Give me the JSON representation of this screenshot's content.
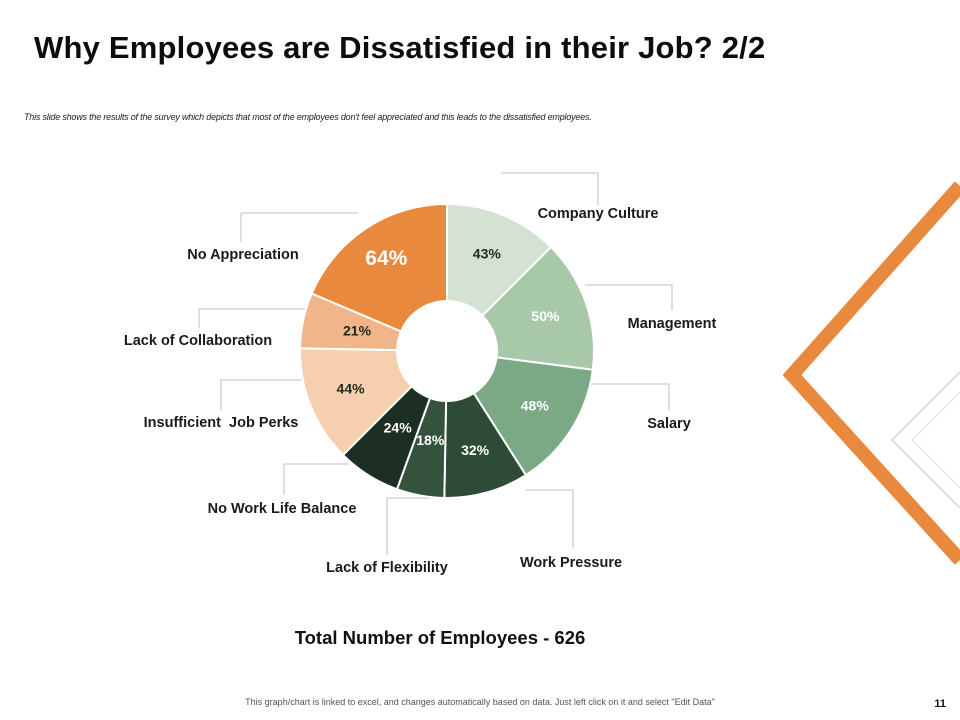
{
  "slide": {
    "title": "Why Employees are Dissatisfied in their Job? 2/2",
    "subtitle": "This slide shows the results of the survey which depicts that most of the employees don't feel appreciated and this leads to the dissatisfied employees.",
    "total_label": "Total Number of Employees  - 626",
    "footer_note": "This graph/chart is linked to excel, and changes automatically based on data. Just left click on it and select \"Edit Data\"",
    "page_number": "11"
  },
  "colors": {
    "accent": "#E8893E"
  },
  "chart_data": {
    "type": "pie",
    "variant": "donut",
    "title": "",
    "legend": "labels placed around the ring with leader lines",
    "slices": [
      {
        "label": "Company Culture",
        "value": 43,
        "display": "43%",
        "color": "#D3E2D3"
      },
      {
        "label": "Management",
        "value": 50,
        "display": "50%",
        "color": "#A8C8AA"
      },
      {
        "label": "Salary",
        "value": 48,
        "display": "48%",
        "color": "#7BA985"
      },
      {
        "label": "Work Pressure",
        "value": 32,
        "display": "32%",
        "color": "#2E4B37"
      },
      {
        "label": "Lack of Flexibility",
        "value": 18,
        "display": "18%",
        "color": "#34523C"
      },
      {
        "label": "No Work Life Balance",
        "value": 24,
        "display": "24%",
        "color": "#1D2E22"
      },
      {
        "label": "Insufficient  Job Perks",
        "value": 44,
        "display": "44%",
        "color": "#F5CFAE"
      },
      {
        "label": "Lack of Collaboration",
        "value": 21,
        "display": "21%",
        "color": "#F1B58A"
      },
      {
        "label": "No Appreciation",
        "value": 64,
        "display": "64%",
        "color": "#E8893E"
      }
    ]
  }
}
